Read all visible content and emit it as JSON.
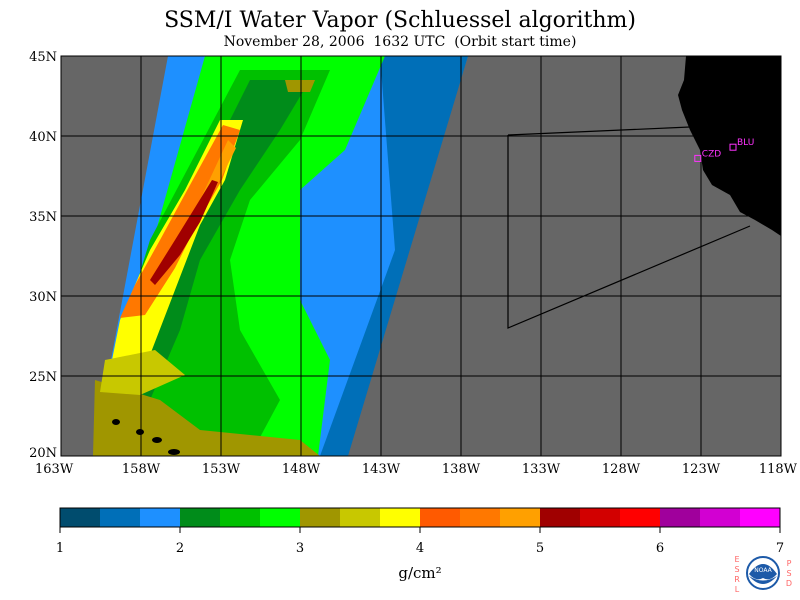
{
  "title": "SSM/I Water Vapor (Schluessel algorithm)",
  "subtitle": "November 28, 2006  1632 UTC  (Orbit start time)",
  "map": {
    "lat_range": [
      20,
      45
    ],
    "lon_range": [
      -163,
      -118
    ],
    "lat_ticks": [
      "45N",
      "40N",
      "35N",
      "30N",
      "25N",
      "20N"
    ],
    "lon_ticks": [
      "163W",
      "158W",
      "153W",
      "148W",
      "143W",
      "138W",
      "133W",
      "128W",
      "123W",
      "118W"
    ],
    "stations": [
      {
        "label": "CZD",
        "lat": 38.6,
        "lon": -123.2
      },
      {
        "label": "BLU",
        "lat": 39.3,
        "lon": -121.0
      }
    ],
    "no_data_color": "#666666",
    "land_color": "#000000"
  },
  "colorbar": {
    "units": "g/cm²",
    "tick_labels": [
      "1",
      "2",
      "3",
      "4",
      "5",
      "6",
      "7"
    ],
    "colors": [
      "#004c6e",
      "#006fb8",
      "#1e90ff",
      "#008c1a",
      "#00c000",
      "#00ff00",
      "#a09600",
      "#c8c800",
      "#ffff00",
      "#ff5a00",
      "#ff7800",
      "#ffa000",
      "#a00000",
      "#d20000",
      "#ff0000",
      "#a0009c",
      "#d200d2",
      "#ff00ff"
    ]
  },
  "logo": {
    "left_letters": "ESRL",
    "right_letters": "PSD",
    "center": "NOAA"
  }
}
